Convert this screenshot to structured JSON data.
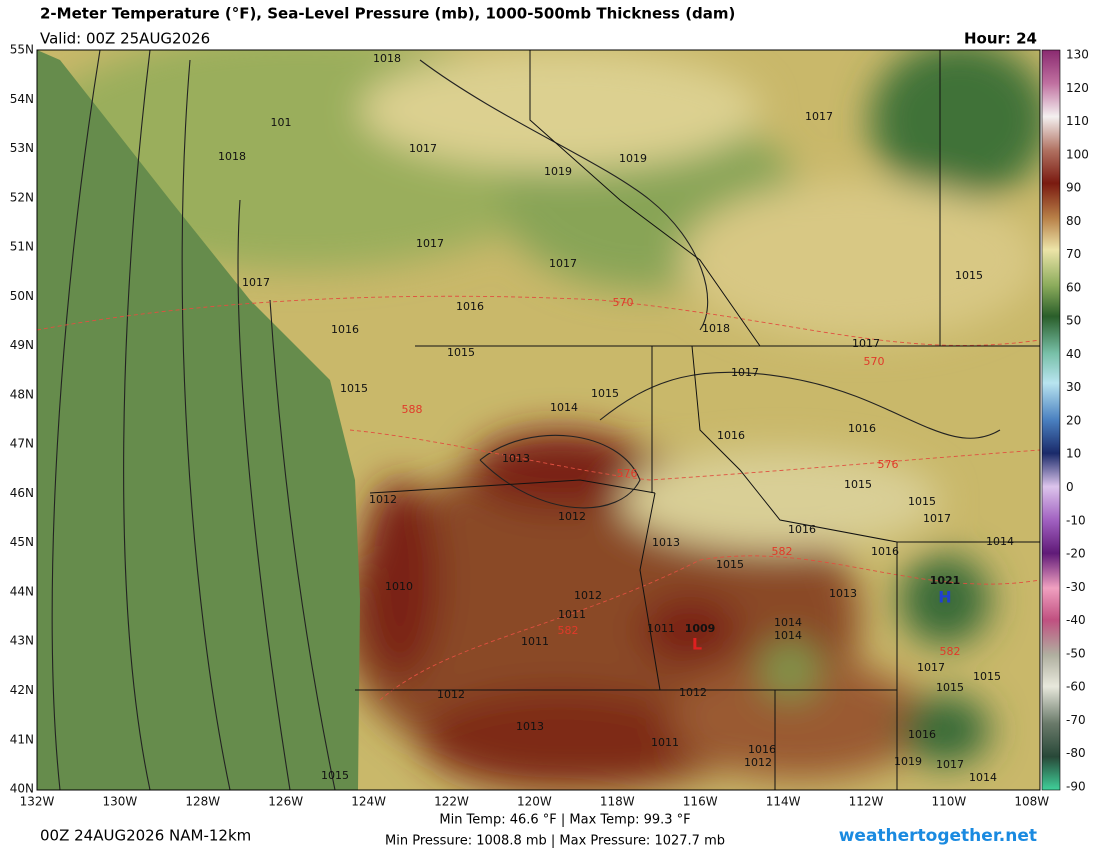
{
  "header": {
    "title": "2-Meter Temperature (°F), Sea-Level Pressure (mb), 1000-500mb Thickness (dam)",
    "valid": "Valid: 00Z 25AUG2026",
    "hour": "Hour: 24"
  },
  "map": {
    "lat_labels": [
      "55N",
      "54N",
      "53N",
      "52N",
      "51N",
      "50N",
      "49N",
      "48N",
      "47N",
      "46N",
      "45N",
      "44N",
      "43N",
      "42N",
      "41N",
      "40N"
    ],
    "lon_labels": [
      "132W",
      "130W",
      "128W",
      "126W",
      "124W",
      "122W",
      "120W",
      "118W",
      "116W",
      "114W",
      "112W",
      "110W",
      "108W"
    ],
    "pressure_labels": [
      1018,
      101,
      1018,
      1017,
      1019,
      1019,
      1017,
      1017,
      1017,
      1017,
      1015,
      1016,
      1018,
      1016,
      1015,
      1017,
      1017,
      1015,
      1015,
      1014,
      1016,
      1016,
      1013,
      1012,
      1015,
      1015,
      1012,
      1017,
      1016,
      1014,
      1013,
      1016,
      1015,
      1021,
      1010,
      1012,
      1013,
      1011,
      1014,
      1014,
      1011,
      1011,
      1009,
      1017,
      1015,
      1015,
      1012,
      1012,
      1013,
      1011,
      1016,
      1016,
      1012,
      1019,
      1017,
      1014,
      1015
    ],
    "thickness_labels": [
      570,
      570,
      576,
      576,
      582,
      582,
      582,
      588
    ],
    "highs": [
      "H"
    ],
    "lows": [
      "L"
    ]
  },
  "colorbar": {
    "ticks": [
      130,
      120,
      110,
      100,
      90,
      80,
      70,
      60,
      50,
      40,
      30,
      20,
      10,
      0,
      -10,
      -20,
      -30,
      -40,
      -50,
      -60,
      -70,
      -80,
      -90
    ]
  },
  "footer": {
    "run": "00Z 24AUG2026 NAM-12km",
    "temp_range": "Min Temp:  46.6 °F | Max Temp:  99.3 °F",
    "pressure_range": "Min Pressure: 1008.8 mb | Max Pressure: 1027.7 mb",
    "site": "weathertogether.net"
  }
}
